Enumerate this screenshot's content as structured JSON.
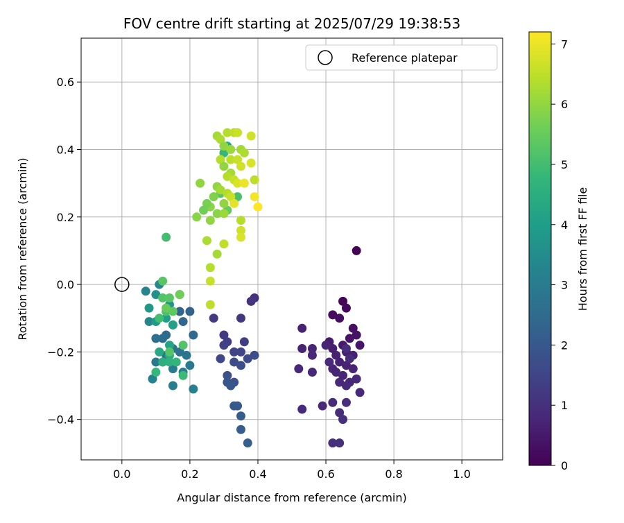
{
  "chart_data": {
    "type": "scatter",
    "title": "FOV centre drift starting at 2025/07/29 19:38:53",
    "xlabel": "Angular distance from reference (arcmin)",
    "ylabel": "Rotation from reference (arcmin)",
    "xlim": [
      -0.12,
      1.12
    ],
    "ylim": [
      -0.52,
      0.73
    ],
    "x_ticks": [
      0.0,
      0.2,
      0.4,
      0.6,
      0.8,
      1.0
    ],
    "x_tick_labels": [
      "0.0",
      "0.2",
      "0.4",
      "0.6",
      "0.8",
      "1.0"
    ],
    "y_ticks": [
      -0.4,
      -0.2,
      0.0,
      0.2,
      0.4,
      0.6
    ],
    "y_tick_labels": [
      "−0.4",
      "−0.2",
      "0.0",
      "0.2",
      "0.4",
      "0.6"
    ],
    "grid": true,
    "legend": {
      "position": "top-right",
      "entries": [
        "Reference platepar"
      ]
    },
    "reference_point": {
      "x": 0.0,
      "y": 0.0,
      "label": "Reference platepar"
    },
    "colorbar": {
      "label": "Hours from first FF file",
      "range": [
        0,
        7.2
      ],
      "ticks": [
        0,
        1,
        2,
        3,
        4,
        5,
        6,
        7
      ],
      "tick_labels": [
        "0",
        "1",
        "2",
        "3",
        "4",
        "5",
        "6",
        "7"
      ],
      "colormap": "viridis",
      "colormap_stops": [
        "#440154",
        "#482878",
        "#3e4989",
        "#31688e",
        "#26828e",
        "#1f9e89",
        "#35b779",
        "#6ece58",
        "#b5de2b",
        "#fde725"
      ]
    },
    "series": [
      {
        "points": [
          [
            0.69,
            0.1,
            0.02
          ],
          [
            0.65,
            -0.05,
            0.1
          ],
          [
            0.66,
            -0.07,
            0.15
          ],
          [
            0.62,
            -0.09,
            0.2
          ],
          [
            0.64,
            -0.1,
            0.25
          ],
          [
            0.68,
            -0.13,
            0.3
          ],
          [
            0.69,
            -0.15,
            0.35
          ],
          [
            0.67,
            -0.16,
            0.4
          ],
          [
            0.7,
            -0.18,
            0.45
          ],
          [
            0.65,
            -0.18,
            0.5
          ],
          [
            0.61,
            -0.17,
            0.55
          ],
          [
            0.62,
            -0.19,
            0.6
          ],
          [
            0.66,
            -0.2,
            0.62
          ],
          [
            0.68,
            -0.21,
            0.64
          ],
          [
            0.63,
            -0.21,
            0.66
          ],
          [
            0.64,
            -0.23,
            0.68
          ],
          [
            0.66,
            -0.24,
            0.7
          ],
          [
            0.68,
            -0.25,
            0.72
          ],
          [
            0.62,
            -0.25,
            0.74
          ],
          [
            0.63,
            -0.26,
            0.76
          ],
          [
            0.65,
            -0.27,
            0.78
          ],
          [
            0.69,
            -0.28,
            0.8
          ],
          [
            0.67,
            -0.29,
            0.82
          ],
          [
            0.64,
            -0.29,
            0.84
          ],
          [
            0.66,
            -0.3,
            0.86
          ],
          [
            0.7,
            -0.32,
            0.88
          ],
          [
            0.62,
            -0.35,
            0.9
          ],
          [
            0.66,
            -0.35,
            0.92
          ],
          [
            0.64,
            -0.38,
            0.94
          ],
          [
            0.65,
            -0.4,
            0.96
          ],
          [
            0.62,
            -0.47,
            0.98
          ],
          [
            0.64,
            -0.47,
            1.0
          ],
          [
            0.53,
            -0.13,
            0.7
          ],
          [
            0.53,
            -0.19,
            0.72
          ],
          [
            0.56,
            -0.19,
            0.74
          ],
          [
            0.6,
            -0.18,
            0.76
          ],
          [
            0.56,
            -0.21,
            0.78
          ],
          [
            0.52,
            -0.25,
            0.8
          ],
          [
            0.56,
            -0.26,
            0.82
          ],
          [
            0.59,
            -0.36,
            0.84
          ],
          [
            0.53,
            -0.37,
            0.86
          ],
          [
            0.61,
            -0.23,
            0.88
          ],
          [
            0.67,
            -0.22,
            0.9
          ],
          [
            0.66,
            -0.19,
            0.92
          ]
        ]
      },
      {
        "points": [
          [
            0.39,
            -0.04,
            1.05
          ],
          [
            0.38,
            -0.05,
            1.1
          ],
          [
            0.35,
            -0.1,
            1.15
          ],
          [
            0.27,
            -0.1,
            1.2
          ],
          [
            0.3,
            -0.15,
            1.25
          ],
          [
            0.36,
            -0.17,
            1.3
          ],
          [
            0.31,
            -0.17,
            1.35
          ],
          [
            0.3,
            -0.18,
            1.4
          ],
          [
            0.33,
            -0.2,
            1.45
          ],
          [
            0.35,
            -0.2,
            1.5
          ],
          [
            0.29,
            -0.22,
            1.55
          ],
          [
            0.37,
            -0.22,
            1.6
          ],
          [
            0.39,
            -0.21,
            1.65
          ],
          [
            0.33,
            -0.23,
            1.7
          ],
          [
            0.35,
            -0.24,
            1.75
          ],
          [
            0.31,
            -0.27,
            1.8
          ],
          [
            0.33,
            -0.29,
            1.85
          ],
          [
            0.31,
            -0.29,
            1.9
          ],
          [
            0.32,
            -0.3,
            1.95
          ],
          [
            0.33,
            -0.36,
            2.0
          ],
          [
            0.34,
            -0.36,
            2.05
          ],
          [
            0.35,
            -0.39,
            2.1
          ],
          [
            0.35,
            -0.43,
            2.15
          ],
          [
            0.37,
            -0.47,
            2.2
          ]
        ]
      },
      {
        "points": [
          [
            0.17,
            -0.03,
            2.2
          ],
          [
            0.2,
            -0.08,
            2.25
          ],
          [
            0.17,
            -0.08,
            2.3
          ],
          [
            0.18,
            -0.11,
            2.35
          ],
          [
            0.15,
            -0.12,
            2.4
          ],
          [
            0.21,
            -0.15,
            2.45
          ],
          [
            0.13,
            -0.15,
            2.5
          ],
          [
            0.12,
            -0.16,
            2.55
          ],
          [
            0.1,
            -0.16,
            2.6
          ],
          [
            0.15,
            -0.19,
            2.65
          ],
          [
            0.17,
            -0.2,
            2.7
          ],
          [
            0.19,
            -0.21,
            2.75
          ],
          [
            0.13,
            -0.21,
            2.8
          ],
          [
            0.12,
            -0.23,
            2.85
          ],
          [
            0.1,
            -0.23,
            2.9
          ],
          [
            0.2,
            -0.24,
            2.95
          ],
          [
            0.15,
            -0.25,
            3.0
          ],
          [
            0.18,
            -0.26,
            3.05
          ],
          [
            0.15,
            -0.3,
            3.1
          ],
          [
            0.21,
            -0.31,
            3.15
          ],
          [
            0.09,
            -0.28,
            3.2
          ],
          [
            0.07,
            -0.02,
            3.25
          ],
          [
            0.11,
            0.0,
            3.3
          ],
          [
            0.08,
            -0.11,
            3.35
          ]
        ]
      },
      {
        "points": [
          [
            0.1,
            -0.03,
            3.6
          ],
          [
            0.14,
            -0.06,
            3.7
          ],
          [
            0.08,
            -0.07,
            3.8
          ],
          [
            0.1,
            -0.11,
            3.9
          ],
          [
            0.13,
            -0.1,
            4.0
          ],
          [
            0.15,
            -0.12,
            4.1
          ],
          [
            0.14,
            -0.18,
            4.2
          ],
          [
            0.11,
            -0.2,
            4.3
          ],
          [
            0.14,
            -0.21,
            4.4
          ],
          [
            0.12,
            -0.23,
            4.5
          ],
          [
            0.14,
            -0.23,
            4.6
          ],
          [
            0.16,
            -0.23,
            4.7
          ],
          [
            0.1,
            -0.26,
            4.8
          ],
          [
            0.18,
            -0.27,
            4.9
          ],
          [
            0.11,
            -0.1,
            5.0
          ],
          [
            0.13,
            -0.08,
            5.1
          ],
          [
            0.12,
            -0.04,
            5.2
          ],
          [
            0.14,
            -0.04,
            5.3
          ],
          [
            0.15,
            -0.08,
            5.4
          ],
          [
            0.13,
            -0.07,
            5.5
          ],
          [
            0.17,
            -0.03,
            5.6
          ],
          [
            0.18,
            -0.18,
            5.2
          ],
          [
            0.14,
            -0.2,
            5.25
          ],
          [
            0.12,
            0.01,
            5.3
          ],
          [
            0.13,
            0.14,
            5.0
          ],
          [
            0.31,
            0.41,
            4.4
          ],
          [
            0.3,
            0.39,
            4.8
          ],
          [
            0.33,
            0.25,
            5.0
          ],
          [
            0.34,
            0.26,
            5.1
          ],
          [
            0.29,
            0.27,
            5.3
          ],
          [
            0.31,
            0.22,
            5.5
          ]
        ]
      },
      {
        "points": [
          [
            0.28,
            0.44,
            6.2
          ],
          [
            0.29,
            0.43,
            6.3
          ],
          [
            0.31,
            0.45,
            6.4
          ],
          [
            0.33,
            0.45,
            6.5
          ],
          [
            0.34,
            0.45,
            6.6
          ],
          [
            0.38,
            0.44,
            6.7
          ],
          [
            0.3,
            0.41,
            6.0
          ],
          [
            0.32,
            0.4,
            6.1
          ],
          [
            0.35,
            0.4,
            6.2
          ],
          [
            0.36,
            0.39,
            6.3
          ],
          [
            0.29,
            0.37,
            6.4
          ],
          [
            0.32,
            0.37,
            6.5
          ],
          [
            0.34,
            0.37,
            6.6
          ],
          [
            0.35,
            0.35,
            6.7
          ],
          [
            0.38,
            0.36,
            6.8
          ],
          [
            0.3,
            0.35,
            6.0
          ],
          [
            0.32,
            0.33,
            6.2
          ],
          [
            0.31,
            0.32,
            6.4
          ],
          [
            0.33,
            0.31,
            6.6
          ],
          [
            0.34,
            0.3,
            6.8
          ],
          [
            0.36,
            0.3,
            7.0
          ],
          [
            0.39,
            0.31,
            6.5
          ],
          [
            0.28,
            0.29,
            6.0
          ],
          [
            0.29,
            0.28,
            6.2
          ],
          [
            0.31,
            0.27,
            6.4
          ],
          [
            0.32,
            0.26,
            6.6
          ],
          [
            0.27,
            0.26,
            5.8
          ],
          [
            0.3,
            0.24,
            6.0
          ],
          [
            0.26,
            0.23,
            5.9
          ],
          [
            0.25,
            0.24,
            5.7
          ],
          [
            0.23,
            0.3,
            6.0
          ],
          [
            0.24,
            0.22,
            5.6
          ],
          [
            0.28,
            0.21,
            5.9
          ],
          [
            0.3,
            0.21,
            6.1
          ],
          [
            0.26,
            0.19,
            6.0
          ],
          [
            0.22,
            0.2,
            5.9
          ],
          [
            0.35,
            0.19,
            6.4
          ],
          [
            0.35,
            0.16,
            6.7
          ],
          [
            0.35,
            0.14,
            6.8
          ],
          [
            0.3,
            0.12,
            6.5
          ],
          [
            0.25,
            0.13,
            6.3
          ],
          [
            0.28,
            0.09,
            6.2
          ],
          [
            0.26,
            0.05,
            6.4
          ],
          [
            0.26,
            0.01,
            6.6
          ],
          [
            0.26,
            -0.06,
            6.5
          ],
          [
            0.4,
            0.23,
            7.2
          ],
          [
            0.39,
            0.26,
            7.1
          ],
          [
            0.33,
            0.24,
            6.9
          ]
        ]
      }
    ]
  }
}
